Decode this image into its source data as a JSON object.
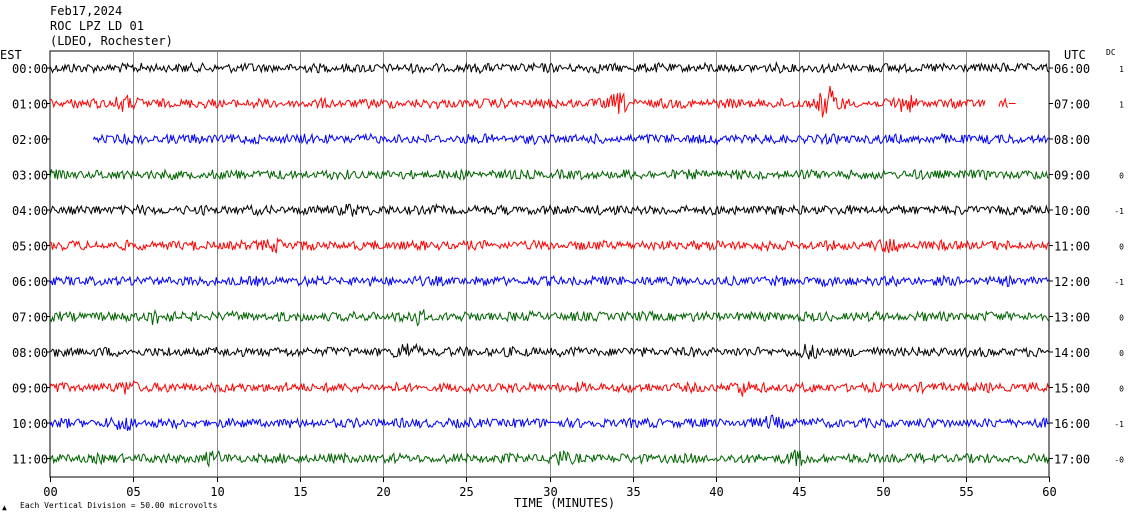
{
  "header": {
    "date": "Feb17,2024",
    "station": "ROC LPZ LD 01",
    "network": "(LDEO, Rochester)"
  },
  "left_axis_label": "EST",
  "right_axis_label": "UTC",
  "dc_label": "DC",
  "footer": {
    "x_axis_title": "TIME (MINUTES)",
    "scale_note": "Each Vertical Division =   50.00 microvolts",
    "corner_mark": "▲"
  },
  "chart_data": {
    "type": "line",
    "title": "",
    "xlabel": "TIME (MINUTES)",
    "xlim": [
      0,
      60
    ],
    "x_ticks": [
      "00",
      "05",
      "10",
      "15",
      "20",
      "25",
      "30",
      "35",
      "40",
      "45",
      "50",
      "55",
      "60"
    ],
    "grid": true,
    "colors_cycle": [
      "#000000",
      "#ff0000",
      "#0000ff",
      "#006400"
    ],
    "rows": [
      {
        "est": "00:00",
        "utc": "06:00",
        "dc": "1",
        "color": "#000000",
        "start_min": 0,
        "end_min": 60
      },
      {
        "est": "01:00",
        "utc": "07:00",
        "dc": "1",
        "color": "#ff0000",
        "start_min": 0,
        "end_min": 58
      },
      {
        "est": "02:00",
        "utc": "08:00",
        "dc": "",
        "color": "#0000ff",
        "start_min": 2.6,
        "end_min": 60
      },
      {
        "est": "03:00",
        "utc": "09:00",
        "dc": "0",
        "color": "#006400",
        "start_min": 0,
        "end_min": 60
      },
      {
        "est": "04:00",
        "utc": "10:00",
        "dc": "-1",
        "color": "#000000",
        "start_min": 0,
        "end_min": 60
      },
      {
        "est": "05:00",
        "utc": "11:00",
        "dc": "0",
        "color": "#ff0000",
        "start_min": 0,
        "end_min": 60
      },
      {
        "est": "06:00",
        "utc": "12:00",
        "dc": "-1",
        "color": "#0000ff",
        "start_min": 0,
        "end_min": 60
      },
      {
        "est": "07:00",
        "utc": "13:00",
        "dc": "0",
        "color": "#006400",
        "start_min": 0,
        "end_min": 60
      },
      {
        "est": "08:00",
        "utc": "14:00",
        "dc": "0",
        "color": "#000000",
        "start_min": 0,
        "end_min": 60
      },
      {
        "est": "09:00",
        "utc": "15:00",
        "dc": "0",
        "color": "#ff0000",
        "start_min": 0,
        "end_min": 60
      },
      {
        "est": "10:00",
        "utc": "16:00",
        "dc": "-1",
        "color": "#0000ff",
        "start_min": 0,
        "end_min": 60
      },
      {
        "est": "11:00",
        "utc": "17:00",
        "dc": "-0",
        "color": "#006400",
        "start_min": 0,
        "end_min": 60
      }
    ],
    "bursts": [
      {
        "row": 1,
        "minute": 46.7,
        "strength": 3.2
      },
      {
        "row": 1,
        "minute": 34.2,
        "strength": 1.8
      },
      {
        "row": 1,
        "minute": 51.3,
        "strength": 1.7
      },
      {
        "row": 1,
        "minute": 4.4,
        "strength": 1.6
      },
      {
        "row": 4,
        "minute": 18.0,
        "strength": 1.3
      },
      {
        "row": 5,
        "minute": 13.5,
        "strength": 1.4
      },
      {
        "row": 5,
        "minute": 50.5,
        "strength": 1.4
      },
      {
        "row": 7,
        "minute": 6.3,
        "strength": 1.5
      },
      {
        "row": 7,
        "minute": 22.0,
        "strength": 1.5
      },
      {
        "row": 8,
        "minute": 21.5,
        "strength": 1.7
      },
      {
        "row": 8,
        "minute": 45.5,
        "strength": 1.3
      },
      {
        "row": 9,
        "minute": 4.8,
        "strength": 1.4
      },
      {
        "row": 9,
        "minute": 41.5,
        "strength": 1.4
      },
      {
        "row": 10,
        "minute": 4.4,
        "strength": 1.4
      },
      {
        "row": 10,
        "minute": 43.5,
        "strength": 1.3
      },
      {
        "row": 11,
        "minute": 30.5,
        "strength": 1.4
      },
      {
        "row": 11,
        "minute": 44.8,
        "strength": 1.4
      },
      {
        "row": 11,
        "minute": 9.8,
        "strength": 1.3
      }
    ]
  }
}
